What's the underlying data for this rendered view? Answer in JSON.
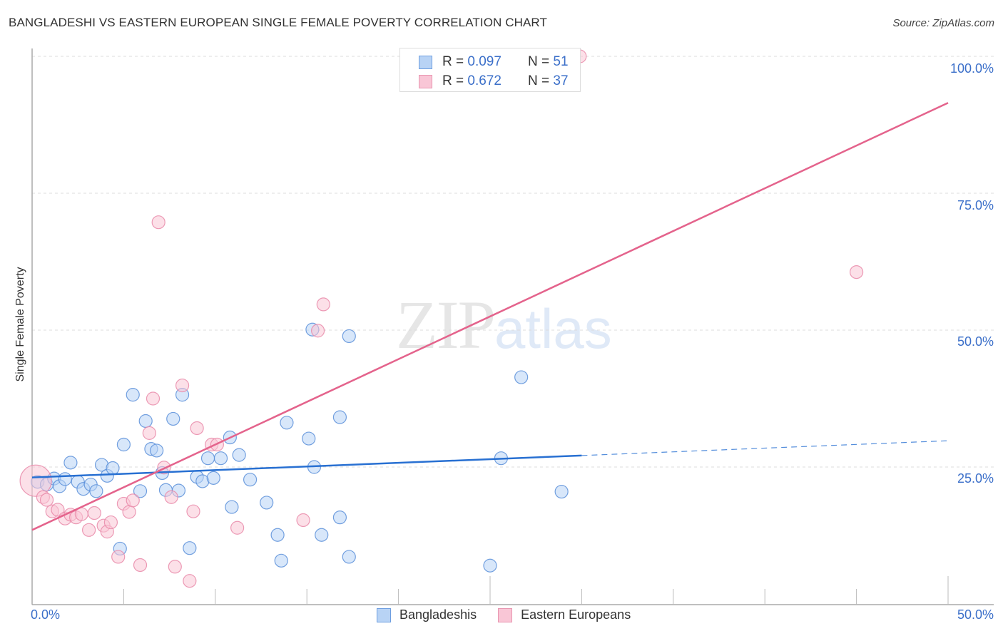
{
  "header": {
    "title": "BANGLADESHI VS EASTERN EUROPEAN SINGLE FEMALE POVERTY CORRELATION CHART",
    "source": "Source: ZipAtlas.com"
  },
  "watermark": {
    "zip": "ZIP",
    "atlas": "atlas"
  },
  "legend_top": {
    "rows": [
      {
        "r_label": "R =",
        "r_value": "0.097",
        "n_label": "N =",
        "n_value": "51",
        "color": "#b8d3f5",
        "border": "#6d9ee0"
      },
      {
        "r_label": "R =",
        "r_value": "0.672",
        "n_label": "N =",
        "n_value": "37",
        "color": "#f9c6d6",
        "border": "#e895b0"
      }
    ]
  },
  "axes": {
    "ylabel": "Single Female Poverty",
    "yticks": [
      "100.0%",
      "75.0%",
      "50.0%",
      "25.0%"
    ],
    "xticks": [
      "0.0%",
      "50.0%"
    ]
  },
  "legend_bottom": {
    "items": [
      {
        "label": "Bangladeshis",
        "color": "#b8d3f5",
        "border": "#6d9ee0"
      },
      {
        "label": "Eastern Europeans",
        "color": "#f9c6d6",
        "border": "#e895b0"
      }
    ]
  },
  "colors": {
    "blue_fill": "#b8d3f5",
    "blue_stroke": "#5b8fd9",
    "blue_line": "#2870d2",
    "pink_fill": "#f9c6d6",
    "pink_stroke": "#e98aa9",
    "pink_line": "#e4638c",
    "tick_label": "#3b6fc9"
  },
  "chart_data": {
    "type": "scatter",
    "title": "BANGLADESHI VS EASTERN EUROPEAN SINGLE FEMALE POVERTY CORRELATION CHART",
    "xlabel": "",
    "ylabel": "Single Female Poverty",
    "xlim": [
      0,
      50
    ],
    "ylim": [
      0,
      100
    ],
    "x_unit": "%",
    "y_unit": "%",
    "grid": "horizontal dashed at 25/50/75/100",
    "legend_position": "top-center and bottom",
    "series": [
      {
        "name": "Bangladeshis",
        "R": 0.097,
        "N": 51,
        "trendline": {
          "x": [
            0,
            30
          ],
          "y": [
            23.1,
            27.1
          ],
          "dashed_extension_to": [
            50,
            29.8
          ]
        },
        "points": [
          [
            0.3,
            22.3
          ],
          [
            0.8,
            21.8
          ],
          [
            1.2,
            22.9
          ],
          [
            1.5,
            21.5
          ],
          [
            1.8,
            22.8
          ],
          [
            2.1,
            25.8
          ],
          [
            2.5,
            22.3
          ],
          [
            2.8,
            21.0
          ],
          [
            3.2,
            21.8
          ],
          [
            3.5,
            20.6
          ],
          [
            3.8,
            25.4
          ],
          [
            4.1,
            23.4
          ],
          [
            4.4,
            24.8
          ],
          [
            4.8,
            10.1
          ],
          [
            5.0,
            29.1
          ],
          [
            5.5,
            38.2
          ],
          [
            5.9,
            20.6
          ],
          [
            6.2,
            33.4
          ],
          [
            6.5,
            28.3
          ],
          [
            6.8,
            28.0
          ],
          [
            7.1,
            23.9
          ],
          [
            7.3,
            20.8
          ],
          [
            7.7,
            33.8
          ],
          [
            8.0,
            20.7
          ],
          [
            8.2,
            38.2
          ],
          [
            8.6,
            10.2
          ],
          [
            9.0,
            23.2
          ],
          [
            9.3,
            22.4
          ],
          [
            9.6,
            26.6
          ],
          [
            9.9,
            23.0
          ],
          [
            10.3,
            26.6
          ],
          [
            10.8,
            30.4
          ],
          [
            10.9,
            17.7
          ],
          [
            11.3,
            27.2
          ],
          [
            11.9,
            22.7
          ],
          [
            12.8,
            18.5
          ],
          [
            13.4,
            12.6
          ],
          [
            13.6,
            7.9
          ],
          [
            13.9,
            33.1
          ],
          [
            15.1,
            30.2
          ],
          [
            15.3,
            50.1
          ],
          [
            15.4,
            25.0
          ],
          [
            15.8,
            12.6
          ],
          [
            16.8,
            34.1
          ],
          [
            16.8,
            15.8
          ],
          [
            17.3,
            48.9
          ],
          [
            17.3,
            8.6
          ],
          [
            25.0,
            7.0
          ],
          [
            25.6,
            26.6
          ],
          [
            26.7,
            41.4
          ],
          [
            28.9,
            20.5
          ]
        ]
      },
      {
        "name": "Eastern Europeans",
        "R": 0.672,
        "N": 37,
        "trendline": {
          "x": [
            0,
            50
          ],
          "y": [
            13.5,
            91.5
          ]
        },
        "points": [
          [
            0.2,
            22.5
          ],
          [
            0.6,
            19.5
          ],
          [
            0.8,
            19.0
          ],
          [
            1.1,
            16.9
          ],
          [
            1.4,
            17.2
          ],
          [
            1.8,
            15.6
          ],
          [
            2.1,
            16.3
          ],
          [
            2.4,
            15.8
          ],
          [
            2.7,
            16.4
          ],
          [
            3.1,
            13.5
          ],
          [
            3.4,
            16.6
          ],
          [
            3.9,
            14.3
          ],
          [
            4.1,
            13.2
          ],
          [
            4.3,
            14.9
          ],
          [
            4.7,
            8.6
          ],
          [
            5.0,
            18.3
          ],
          [
            5.3,
            16.8
          ],
          [
            5.5,
            18.9
          ],
          [
            5.9,
            7.1
          ],
          [
            6.4,
            31.2
          ],
          [
            6.6,
            37.5
          ],
          [
            6.9,
            69.7
          ],
          [
            7.2,
            24.9
          ],
          [
            7.6,
            19.5
          ],
          [
            7.8,
            6.8
          ],
          [
            8.2,
            39.9
          ],
          [
            8.6,
            4.2
          ],
          [
            8.8,
            16.9
          ],
          [
            9.0,
            32.1
          ],
          [
            9.8,
            29.1
          ],
          [
            10.1,
            29.1
          ],
          [
            11.2,
            13.9
          ],
          [
            14.8,
            15.3
          ],
          [
            15.6,
            49.9
          ],
          [
            15.9,
            54.7
          ],
          [
            29.9,
            100.0
          ],
          [
            45.0,
            60.6
          ]
        ]
      }
    ]
  }
}
